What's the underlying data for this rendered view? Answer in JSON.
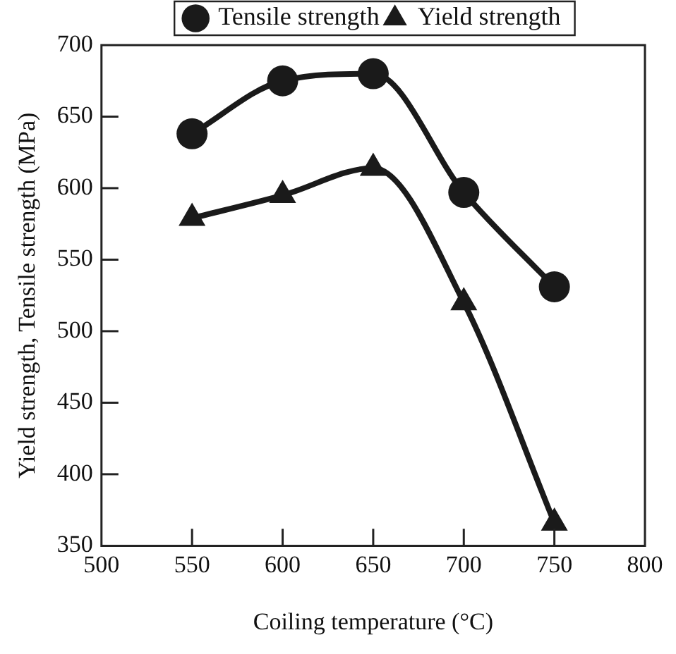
{
  "chart_data": {
    "type": "line",
    "xlabel": "Coiling temperature (°C)",
    "ylabel": "Yield strength, Tensile strength (MPa)",
    "x": [
      550,
      600,
      650,
      700,
      750
    ],
    "series": [
      {
        "name": "Tensile strength",
        "color": "#1a1a1a",
        "marker": "circle",
        "values": [
          638,
          675,
          680,
          597,
          531
        ]
      },
      {
        "name": "Yield strength",
        "color": "#1a1a1a",
        "marker": "triangle",
        "values": [
          579,
          595,
          614,
          520,
          366
        ]
      }
    ],
    "xlim": [
      500,
      800
    ],
    "xticks": [
      500,
      550,
      600,
      650,
      700,
      750,
      800
    ],
    "ylim": [
      350,
      700
    ],
    "yticks": [
      350,
      400,
      450,
      500,
      550,
      600,
      650,
      700
    ],
    "grid": false,
    "legend": "top",
    "line_style": "solid"
  }
}
